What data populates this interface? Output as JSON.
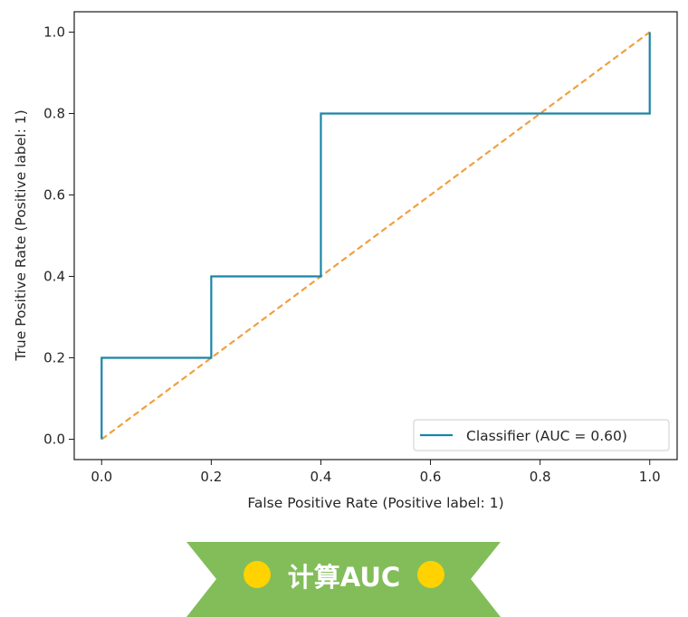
{
  "chart_data": {
    "type": "line",
    "xlabel": "False Positive Rate (Positive label: 1)",
    "ylabel": "True Positive Rate (Positive label: 1)",
    "xlim": [
      -0.05,
      1.05
    ],
    "ylim": [
      -0.05,
      1.05
    ],
    "xticks": [
      "0.0",
      "0.2",
      "0.4",
      "0.6",
      "0.8",
      "1.0"
    ],
    "yticks": [
      "0.0",
      "0.2",
      "0.4",
      "0.6",
      "0.8",
      "1.0"
    ],
    "grid": false,
    "legend_position": "lower-right",
    "series": [
      {
        "name": "Classifier (AUC = 0.60)",
        "color": "#1a85a8",
        "style": "solid",
        "x": [
          0.0,
          0.0,
          0.2,
          0.2,
          0.4,
          0.4,
          1.0,
          1.0
        ],
        "y": [
          0.0,
          0.2,
          0.2,
          0.4,
          0.4,
          0.8,
          0.8,
          1.0
        ]
      },
      {
        "color": "#f0a040",
        "style": "dashed",
        "x": [
          0.0,
          1.0
        ],
        "y": [
          0.0,
          1.0
        ]
      }
    ]
  },
  "banner": {
    "text": "计算AUC",
    "background": "#82bd5a",
    "dot_color": "#ffd200"
  }
}
